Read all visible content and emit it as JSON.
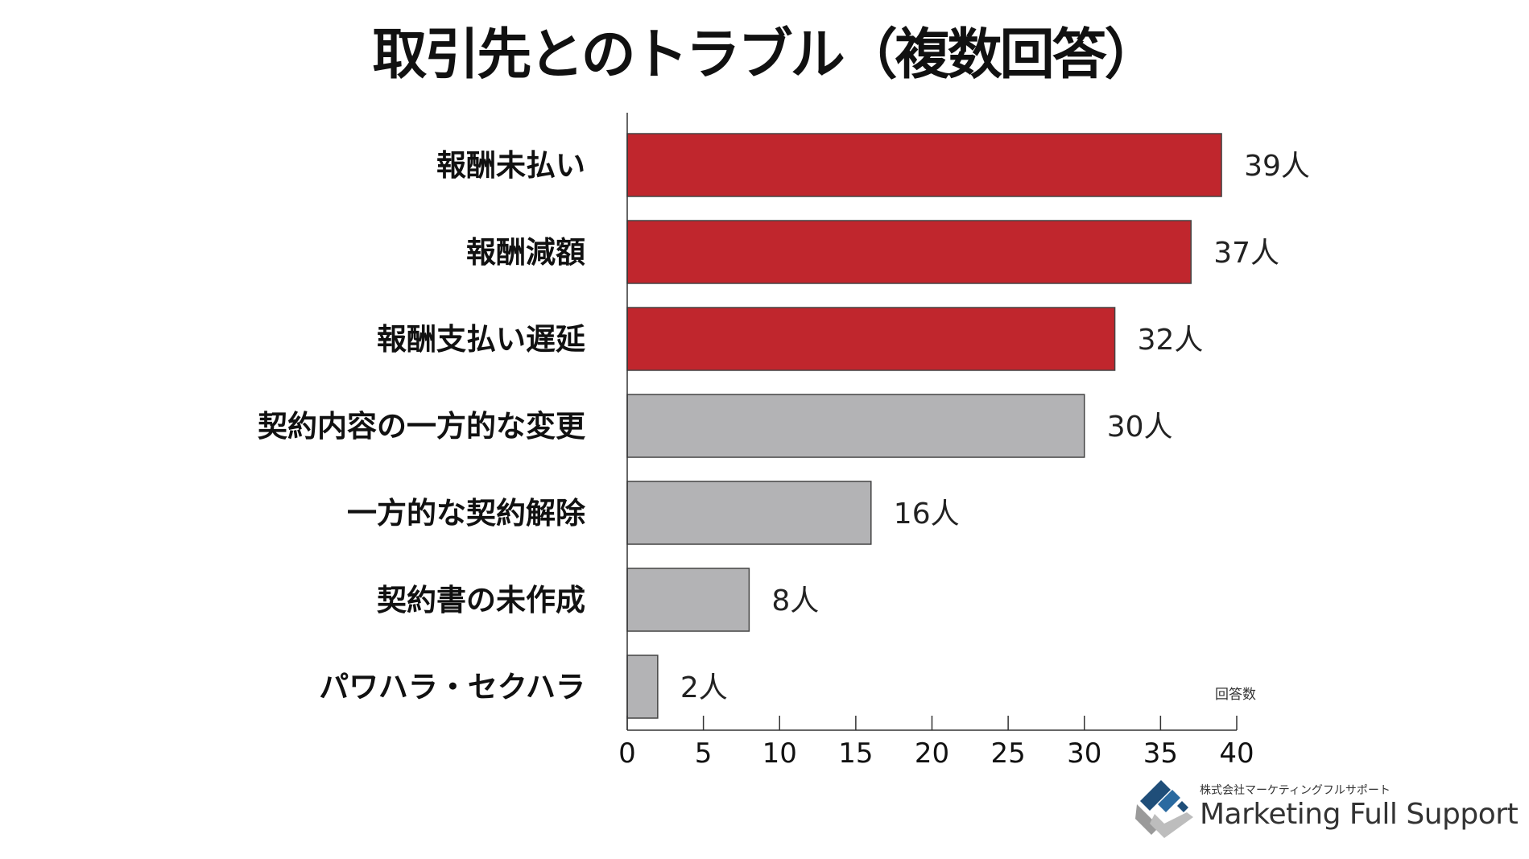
{
  "chart_data": {
    "type": "bar",
    "orientation": "horizontal",
    "title": "取引先とのトラブル（複数回答）",
    "xlabel": "回答数",
    "categories": [
      "報酬未払い",
      "報酬減額",
      "報酬支払い遅延",
      "契約内容の一方的な変更",
      "一方的な契約解除",
      "契約書の未作成",
      "パワハラ・セクハラ"
    ],
    "values": [
      39,
      37,
      32,
      30,
      16,
      8,
      2
    ],
    "data_labels": [
      "39人",
      "37人",
      "32人",
      "30人",
      "16人",
      "8人",
      "2人"
    ],
    "highlighted": [
      true,
      true,
      true,
      false,
      false,
      false,
      false
    ],
    "xlim": [
      0,
      40
    ],
    "xticks": [
      "0",
      "5",
      "10",
      "15",
      "20",
      "25",
      "30",
      "35",
      "40"
    ],
    "grid": false,
    "colors": {
      "highlight": "#c0262d",
      "normal": "#b3b3b5",
      "outline": "#444444"
    }
  },
  "logo": {
    "company_jp": "株式会社マーケティングフルサポート",
    "company_en": "Marketing Full Support"
  }
}
